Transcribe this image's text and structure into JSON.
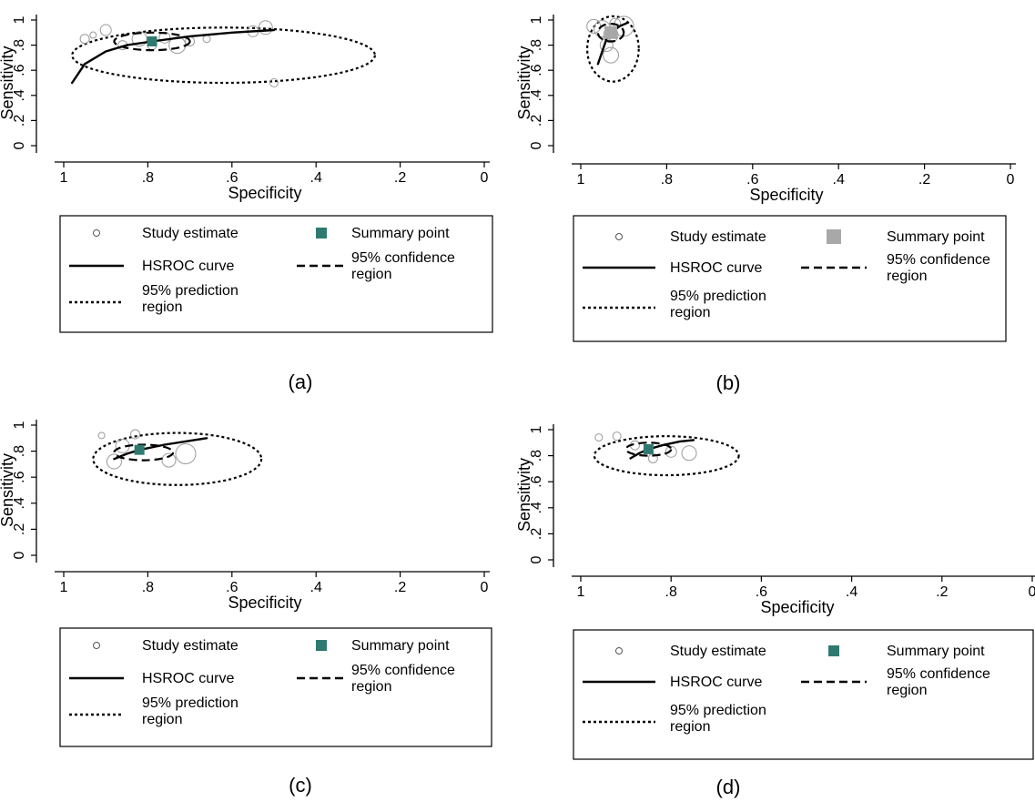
{
  "legend_labels": {
    "study": "Study estimate",
    "summary": "Summary point",
    "curve": "HSROC curve",
    "confidence": [
      "95% confidence",
      "region"
    ],
    "prediction": [
      "95% prediction",
      "region"
    ]
  },
  "colors": {
    "summary_teal": "#2e7a70",
    "summary_gray": "#a8a8a8",
    "study_circle": "#9a9a9a",
    "line": "#000000"
  },
  "chart_data": [
    {
      "panel_label": "(a)",
      "type": "scatter",
      "xlabel": "Specificity",
      "ylabel": "Sensitivity",
      "xlim": [
        1,
        0
      ],
      "ylim": [
        0,
        1
      ],
      "x_ticks": [
        "1",
        ".8",
        ".6",
        ".4",
        ".2",
        "0"
      ],
      "y_ticks": [
        "0",
        ".2",
        ".4",
        ".6",
        ".8",
        "1"
      ],
      "summary_style": "teal",
      "summary_point": {
        "x": 0.79,
        "y": 0.83
      },
      "studies": [
        {
          "x": 0.95,
          "y": 0.85,
          "size": 1.0
        },
        {
          "x": 0.93,
          "y": 0.88,
          "size": 0.7
        },
        {
          "x": 0.9,
          "y": 0.92,
          "size": 1.2
        },
        {
          "x": 0.86,
          "y": 0.8,
          "size": 1.0
        },
        {
          "x": 0.82,
          "y": 0.85,
          "size": 1.6
        },
        {
          "x": 0.79,
          "y": 0.8,
          "size": 1.0
        },
        {
          "x": 0.76,
          "y": 0.86,
          "size": 1.2
        },
        {
          "x": 0.73,
          "y": 0.8,
          "size": 1.8
        },
        {
          "x": 0.7,
          "y": 0.83,
          "size": 1.0
        },
        {
          "x": 0.66,
          "y": 0.85,
          "size": 0.8
        },
        {
          "x": 0.55,
          "y": 0.91,
          "size": 1.2
        },
        {
          "x": 0.52,
          "y": 0.94,
          "size": 1.5
        },
        {
          "x": 0.5,
          "y": 0.5,
          "size": 0.9
        }
      ],
      "hsroc_curve": [
        [
          0.98,
          0.5
        ],
        [
          0.95,
          0.65
        ],
        [
          0.9,
          0.75
        ],
        [
          0.85,
          0.8
        ],
        [
          0.79,
          0.83
        ],
        [
          0.7,
          0.87
        ],
        [
          0.6,
          0.9
        ],
        [
          0.5,
          0.92
        ]
      ],
      "confidence_region": {
        "cx": 0.79,
        "cy": 0.83,
        "rx": 0.09,
        "ry": 0.07
      },
      "prediction_region": {
        "cx": 0.62,
        "cy": 0.72,
        "rx": 0.36,
        "ry": 0.22
      }
    },
    {
      "panel_label": "(b)",
      "type": "scatter",
      "xlabel": "Specificity",
      "ylabel": "Sensitivity",
      "xlim": [
        1,
        0
      ],
      "ylim": [
        0,
        1
      ],
      "x_ticks": [
        "1",
        ".8",
        ".6",
        ".4",
        ".2",
        "0"
      ],
      "y_ticks": [
        "0",
        ".2",
        ".4",
        ".6",
        ".8",
        "1"
      ],
      "summary_style": "gray",
      "summary_point": {
        "x": 0.93,
        "y": 0.9
      },
      "studies": [
        {
          "x": 0.97,
          "y": 0.95,
          "size": 1.5
        },
        {
          "x": 0.95,
          "y": 0.93,
          "size": 1.8
        },
        {
          "x": 0.92,
          "y": 0.97,
          "size": 1.2
        },
        {
          "x": 0.9,
          "y": 0.95,
          "size": 2.2
        },
        {
          "x": 0.93,
          "y": 0.88,
          "size": 1.6
        },
        {
          "x": 0.94,
          "y": 0.8,
          "size": 1.4
        },
        {
          "x": 0.93,
          "y": 0.72,
          "size": 1.7
        }
      ],
      "hsroc_curve": [
        [
          0.96,
          0.65
        ],
        [
          0.95,
          0.75
        ],
        [
          0.94,
          0.85
        ],
        [
          0.93,
          0.9
        ],
        [
          0.91,
          0.95
        ],
        [
          0.89,
          0.98
        ]
      ],
      "confidence_region": {
        "cx": 0.93,
        "cy": 0.9,
        "rx": 0.03,
        "ry": 0.07
      },
      "prediction_region": {
        "cx": 0.925,
        "cy": 0.77,
        "rx": 0.06,
        "ry": 0.26
      }
    },
    {
      "panel_label": "(c)",
      "type": "scatter",
      "xlabel": "Specificity",
      "ylabel": "Sensitivity",
      "xlim": [
        1,
        0
      ],
      "ylim": [
        0,
        1
      ],
      "x_ticks": [
        "1",
        ".8",
        ".6",
        ".4",
        ".2",
        "0"
      ],
      "y_ticks": [
        "0",
        ".2",
        ".4",
        ".6",
        ".8",
        "1"
      ],
      "summary_style": "teal",
      "summary_point": {
        "x": 0.82,
        "y": 0.81
      },
      "studies": [
        {
          "x": 0.91,
          "y": 0.92,
          "size": 0.7
        },
        {
          "x": 0.88,
          "y": 0.72,
          "size": 1.6
        },
        {
          "x": 0.86,
          "y": 0.84,
          "size": 1.5
        },
        {
          "x": 0.83,
          "y": 0.93,
          "size": 1.0
        },
        {
          "x": 0.75,
          "y": 0.73,
          "size": 1.5
        },
        {
          "x": 0.71,
          "y": 0.78,
          "size": 2.2
        }
      ],
      "hsroc_curve": [
        [
          0.88,
          0.74
        ],
        [
          0.85,
          0.78
        ],
        [
          0.82,
          0.81
        ],
        [
          0.76,
          0.85
        ],
        [
          0.7,
          0.88
        ],
        [
          0.66,
          0.9
        ]
      ],
      "confidence_region": {
        "cx": 0.81,
        "cy": 0.79,
        "rx": 0.07,
        "ry": 0.06
      },
      "prediction_region": {
        "cx": 0.73,
        "cy": 0.74,
        "rx": 0.2,
        "ry": 0.2
      }
    },
    {
      "panel_label": "(d)",
      "type": "scatter",
      "xlabel": "Specificity",
      "ylabel": "Sensitivity",
      "xlim": [
        1,
        0
      ],
      "ylim": [
        0,
        1
      ],
      "x_ticks": [
        "1",
        ".8",
        ".6",
        ".4",
        ".2",
        "0"
      ],
      "y_ticks": [
        "0",
        ".2",
        ".4",
        ".6",
        ".8",
        "1"
      ],
      "summary_style": "teal",
      "summary_point": {
        "x": 0.85,
        "y": 0.85
      },
      "studies": [
        {
          "x": 0.96,
          "y": 0.94,
          "size": 0.8
        },
        {
          "x": 0.92,
          "y": 0.95,
          "size": 0.9
        },
        {
          "x": 0.88,
          "y": 0.88,
          "size": 1.0
        },
        {
          "x": 0.84,
          "y": 0.78,
          "size": 1.0
        },
        {
          "x": 0.8,
          "y": 0.83,
          "size": 1.2
        },
        {
          "x": 0.76,
          "y": 0.82,
          "size": 1.6
        }
      ],
      "hsroc_curve": [
        [
          0.89,
          0.78
        ],
        [
          0.87,
          0.82
        ],
        [
          0.85,
          0.85
        ],
        [
          0.82,
          0.88
        ],
        [
          0.78,
          0.91
        ],
        [
          0.75,
          0.92
        ]
      ],
      "confidence_region": {
        "cx": 0.85,
        "cy": 0.85,
        "rx": 0.05,
        "ry": 0.05
      },
      "prediction_region": {
        "cx": 0.81,
        "cy": 0.8,
        "rx": 0.16,
        "ry": 0.15
      }
    }
  ]
}
